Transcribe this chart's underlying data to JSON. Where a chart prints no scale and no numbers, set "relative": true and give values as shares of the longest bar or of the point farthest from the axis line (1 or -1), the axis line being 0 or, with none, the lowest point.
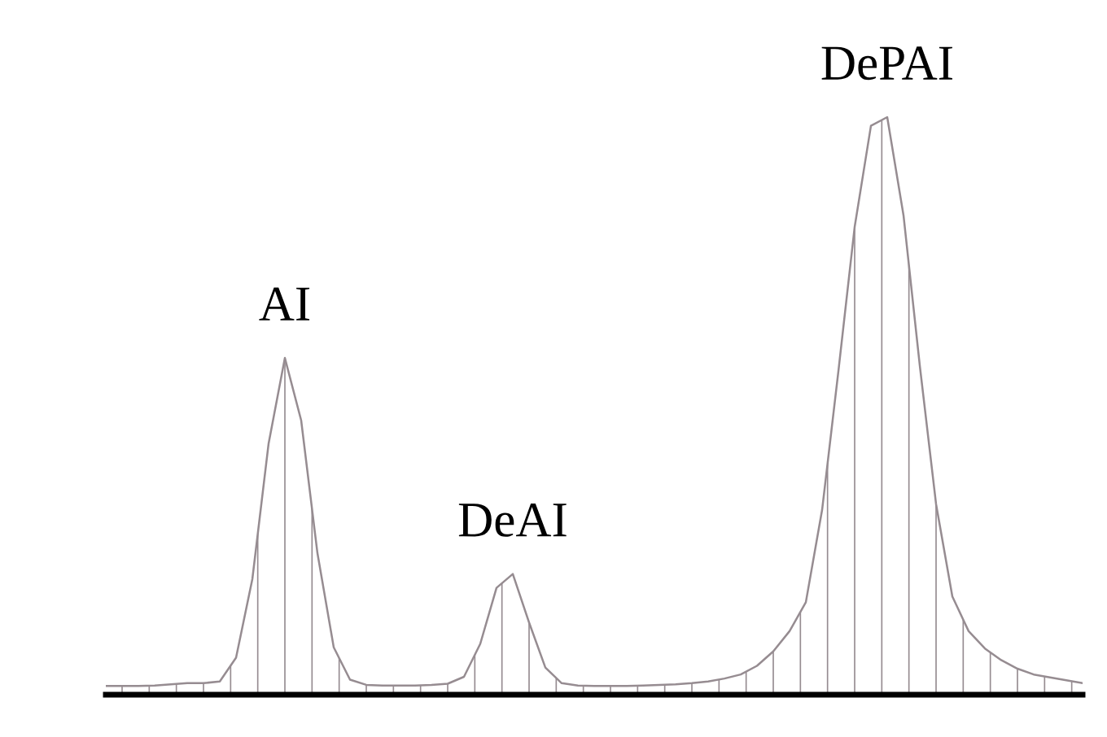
{
  "chart_data": {
    "type": "area",
    "relative": true,
    "color": "#968c91",
    "categories": [
      null,
      null,
      null,
      null,
      null,
      null,
      null,
      null,
      null,
      null,
      null,
      null,
      null,
      null,
      null,
      null,
      null,
      null,
      null,
      null,
      null,
      null,
      null,
      null,
      null,
      null,
      null,
      null,
      null,
      null,
      null,
      null,
      null,
      null,
      null,
      null,
      null,
      null,
      null,
      null,
      null,
      null,
      null,
      null,
      null,
      null,
      null,
      null,
      null,
      null,
      null,
      null,
      null,
      null,
      null,
      null,
      null,
      null,
      null,
      null,
      null
    ],
    "values": [
      0.015,
      0.015,
      0.015,
      0.016,
      0.018,
      0.02,
      0.02,
      0.023,
      0.064,
      0.2,
      0.435,
      0.583,
      0.475,
      0.245,
      0.082,
      0.026,
      0.017,
      0.016,
      0.016,
      0.016,
      0.017,
      0.019,
      0.031,
      0.088,
      0.185,
      0.209,
      0.125,
      0.047,
      0.02,
      0.016,
      0.015,
      0.015,
      0.015,
      0.016,
      0.017,
      0.018,
      0.02,
      0.023,
      0.028,
      0.035,
      0.05,
      0.075,
      0.11,
      0.16,
      0.32,
      0.56,
      0.81,
      0.985,
      1,
      0.83,
      0.57,
      0.33,
      0.17,
      0.11,
      0.08,
      0.06,
      0.045,
      0.035,
      0.03,
      0.025,
      0.02
    ],
    "annotations": [
      "AI",
      "DeAI",
      "DePAI"
    ]
  }
}
